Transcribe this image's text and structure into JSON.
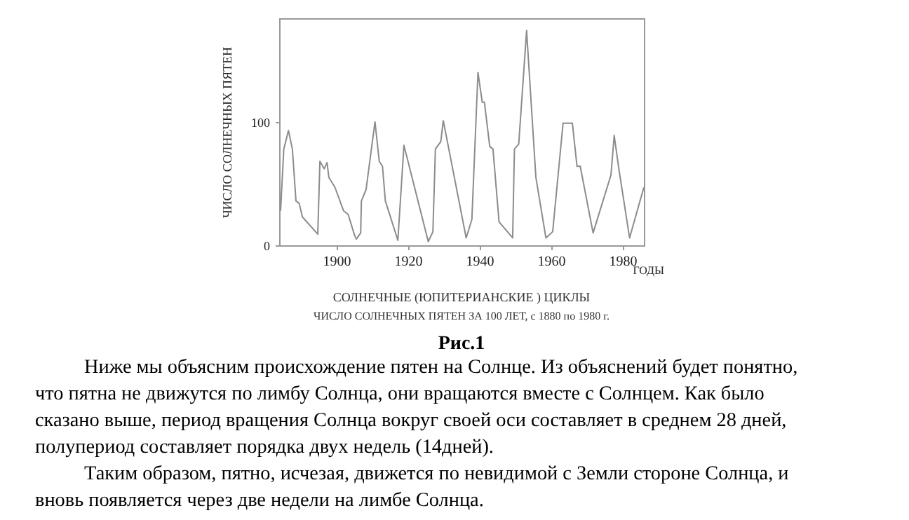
{
  "chart_data": {
    "type": "line",
    "title": "СОЛНЕЧНЫЕ (ЮПИТЕРИАНСКИЕ ) ЦИКЛЫ",
    "subtitle": "ЧИСЛО СОЛНЕЧНЫХ ПЯТЕН ЗА 100 ЛЕТ, с 1880 по 1980 г.",
    "xlabel": "ГОДЫ",
    "ylabel": "ЧИСЛО СОЛНЕЧНЫХ ПЯТЕН",
    "x": [
      1884.4,
      1885.3,
      1886.6,
      1887.7,
      1888.7,
      1889.6,
      1890.5,
      1894.8,
      1895.4,
      1896.6,
      1897.4,
      1897.9,
      1899.6,
      1902,
      1903.3,
      1905.1,
      1905.6,
      1906.8,
      1907,
      1908.3,
      1910.8,
      1912,
      1912.9,
      1913.7,
      1917.2,
      1918.9,
      1925.7,
      1927,
      1927.7,
      1929.2,
      1929.9,
      1936.3,
      1937.9,
      1939.6,
      1940.8,
      1941.4,
      1942.9,
      1943.8,
      1945.5,
      1949.3,
      1949.8,
      1951,
      1953.2,
      1955.8,
      1958.6,
      1960.5,
      1963.4,
      1966,
      1967.3,
      1968.2,
      1971.8,
      1976.8,
      1977.7,
      1979,
      1982,
      1986
    ],
    "series": [
      {
        "color": "#8c8c8c",
        "values": [
          28,
          78,
          93,
          78,
          36,
          34,
          23,
          9,
          68,
          62,
          67,
          55,
          47,
          28,
          25,
          8,
          5,
          10,
          36,
          45,
          100,
          68,
          64,
          36,
          4,
          81,
          3,
          11,
          78,
          84,
          101,
          6,
          21,
          140,
          116,
          116,
          80,
          78,
          19,
          6,
          78,
          82,
          174,
          55,
          6,
          11,
          99,
          99,
          64,
          64,
          10,
          57,
          89,
          62,
          6,
          47
        ]
      }
    ],
    "xlim": [
      1884,
      1986
    ],
    "ylim": [
      0,
      184
    ],
    "xticks": [
      1900,
      1920,
      1940,
      1960,
      1980
    ],
    "yticks": [
      0,
      100
    ],
    "grid": false,
    "marker": "none",
    "line_style": "solid",
    "annotations": [
      "Рис.1",
      "Ниже мы объясним  происхождение пятен на Солнце. Из объяснений будет понятно, что пятна не движутся по лимбу Солнца, они вращаются вместе с Солнцем. Как было сказано выше, период вращения Солнца вокруг своей оси составляет в среднем 28 дней, полупериод составляет порядка двух недель (14дней).",
      "Таким образом, пятно, исчезая, движется по невидимой с Земли стороне Солнца, и вновь появляется через две недели на лимбе Солнца."
    ]
  }
}
